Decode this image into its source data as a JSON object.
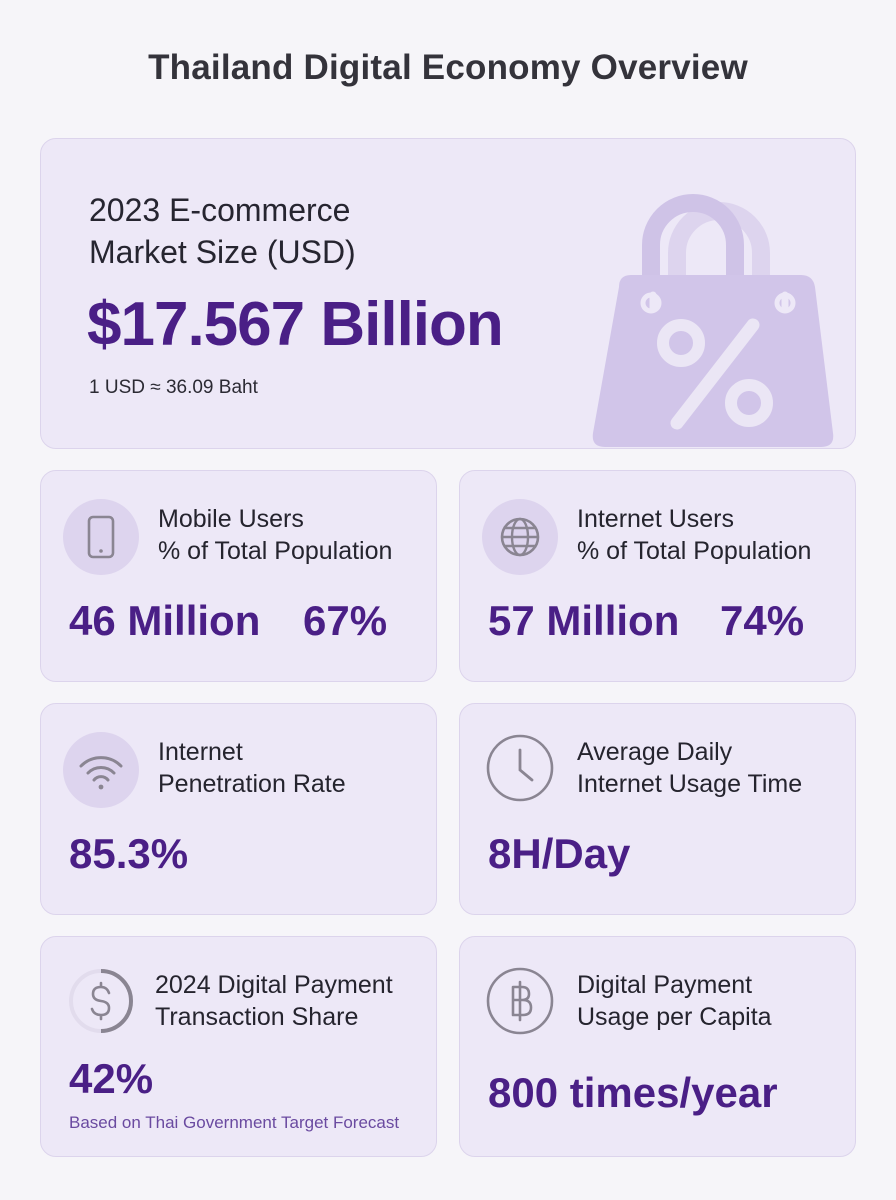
{
  "title": "Thailand Digital Economy Overview",
  "hero": {
    "label_line1": "2023 E-commerce",
    "label_line2": "Market Size (USD)",
    "value": "$17.567 Billion",
    "note": "1 USD ≈ 36.09 Baht",
    "icon": "shopping-bag-percent-icon"
  },
  "cards": [
    {
      "icon": "mobile-phone-icon",
      "label_line1": "Mobile Users",
      "label_line2": "% of Total Population",
      "value": "46 Million",
      "value2": "67%"
    },
    {
      "icon": "globe-icon",
      "label_line1": "Internet Users",
      "label_line2": "% of Total Population",
      "value": "57 Million",
      "value2": "74%"
    },
    {
      "icon": "wifi-icon",
      "label_line1": "Internet",
      "label_line2": "Penetration Rate",
      "value": "85.3%"
    },
    {
      "icon": "clock-icon",
      "label_line1": "Average Daily",
      "label_line2": "Internet Usage Time",
      "value": "8H/Day"
    },
    {
      "icon": "dollar-circle-icon",
      "label_line1": "2024 Digital Payment",
      "label_line2": "Transaction Share",
      "value": "42%",
      "note": "Based on Thai Government Target Forecast"
    },
    {
      "icon": "baht-circle-icon",
      "label_line1": "Digital Payment",
      "label_line2": "Usage per Capita",
      "value": "800 times/year"
    }
  ],
  "colors": {
    "accent": "#4a1f86",
    "card_bg": "#ede8f7",
    "icon_bg": "#ddd4ee",
    "page_bg": "#f6f5f9"
  }
}
